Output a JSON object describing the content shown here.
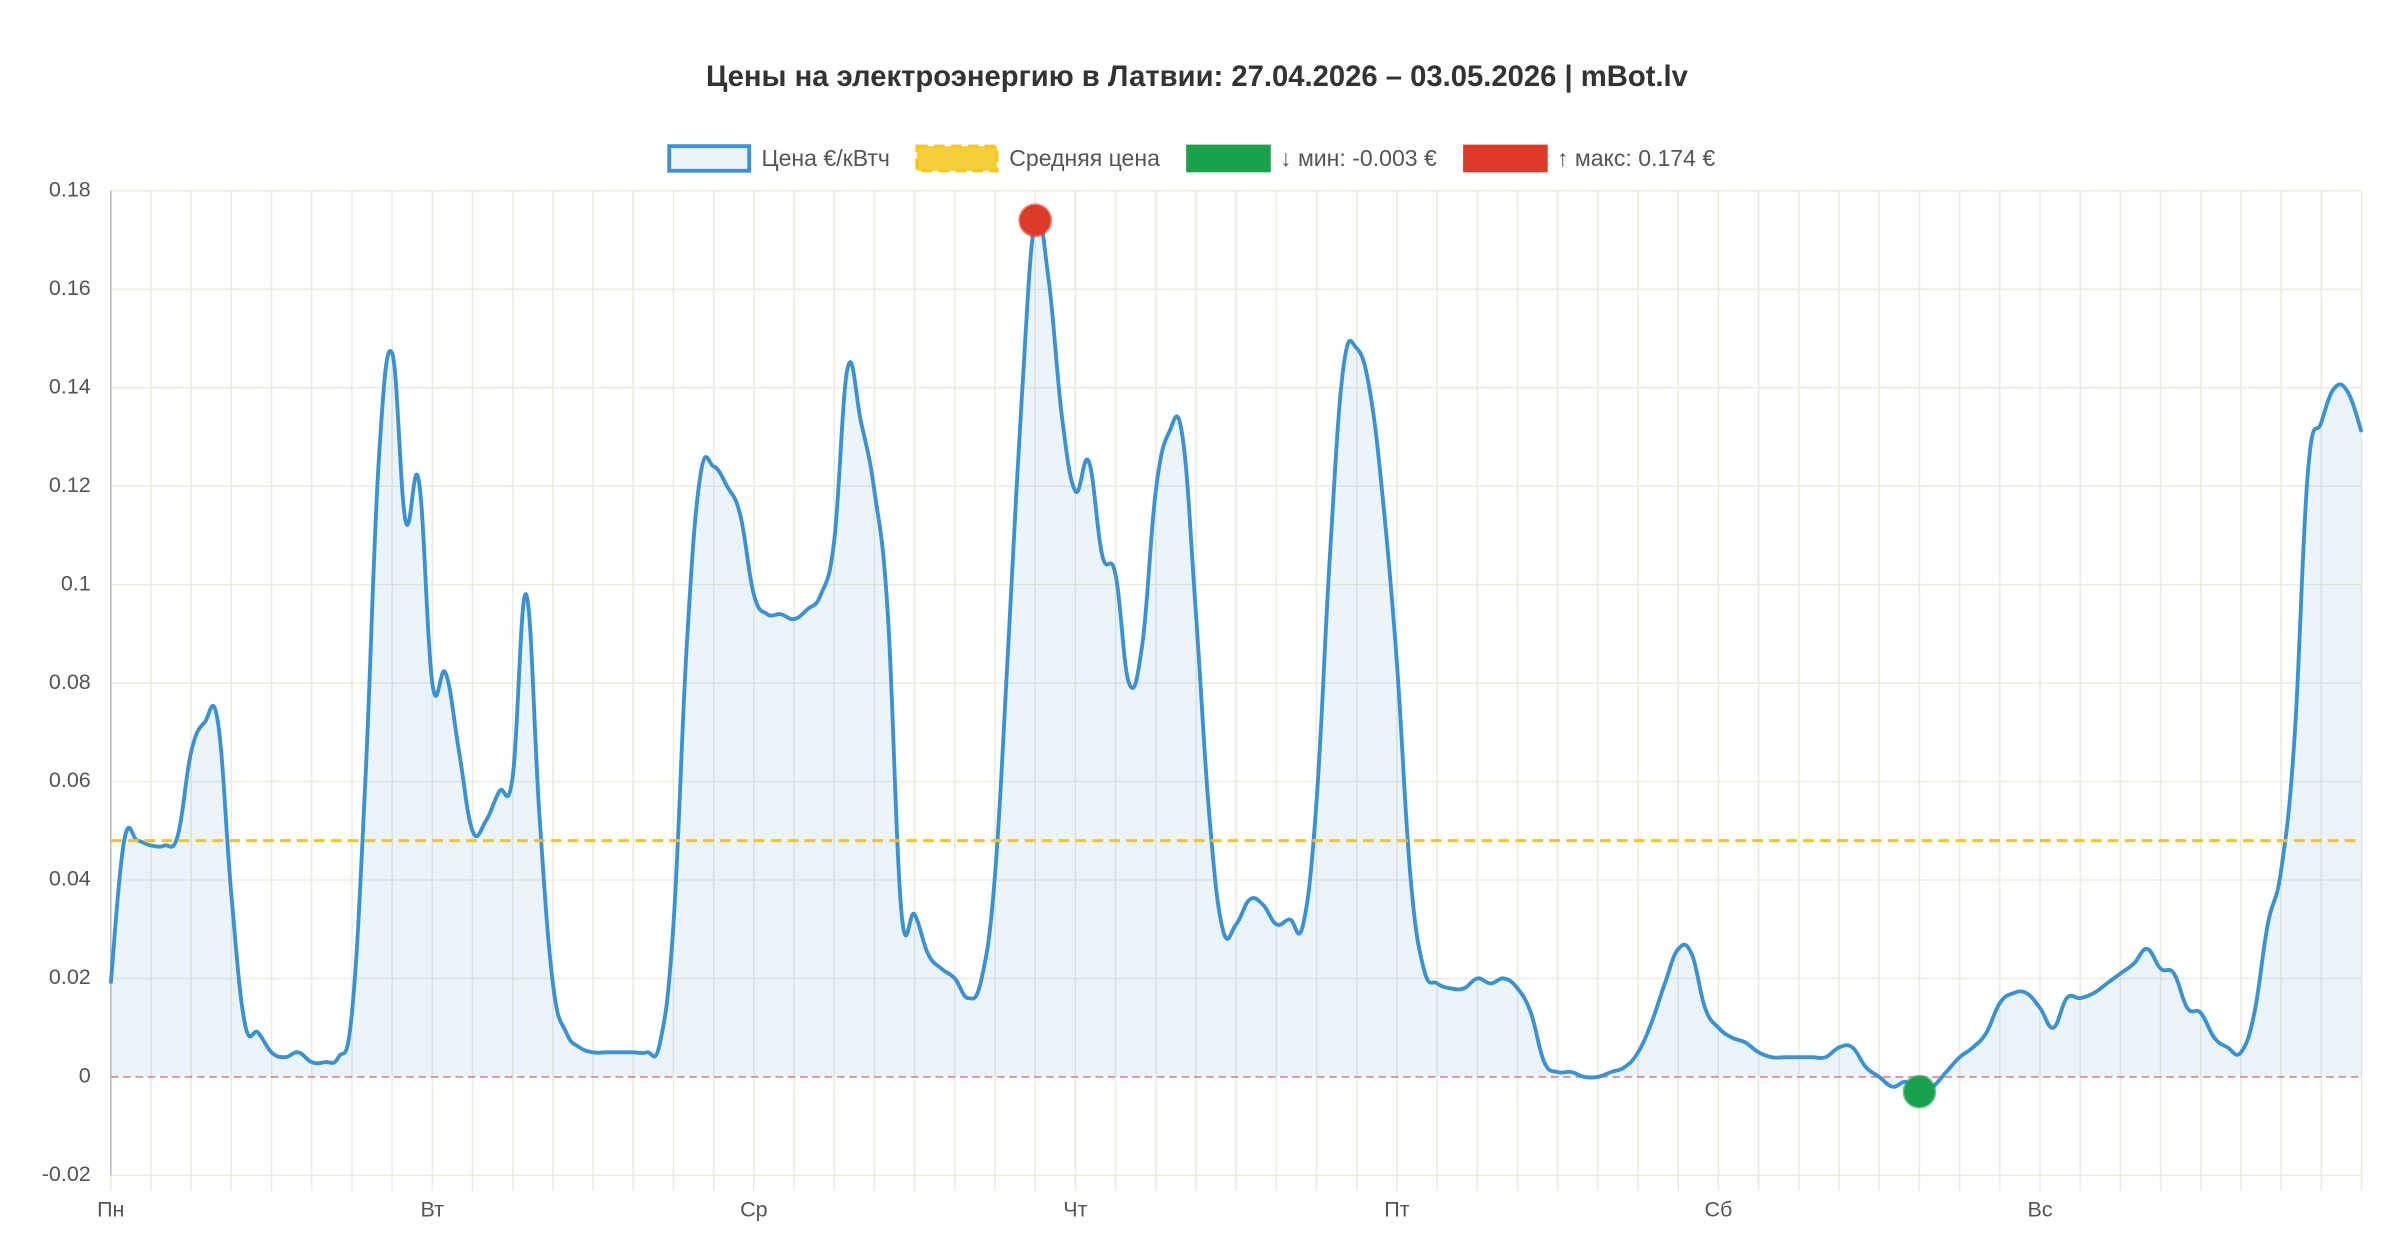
{
  "chart_data": {
    "type": "line",
    "title": "Цены на электроэнергию в Латвии: 27.04.2026 – 03.05.2026 | mBot.lv",
    "categories": [
      "Пн",
      null,
      null,
      null,
      null,
      null,
      null,
      null,
      null,
      null,
      null,
      null,
      null,
      null,
      null,
      null,
      null,
      null,
      null,
      null,
      null,
      null,
      null,
      null,
      "Вт",
      null,
      null,
      null,
      null,
      null,
      null,
      null,
      null,
      null,
      null,
      null,
      null,
      null,
      null,
      null,
      null,
      null,
      null,
      null,
      null,
      null,
      null,
      null,
      "Ср",
      null,
      null,
      null,
      null,
      null,
      null,
      null,
      null,
      null,
      null,
      null,
      null,
      null,
      null,
      null,
      null,
      null,
      null,
      null,
      null,
      null,
      null,
      null,
      "Чт",
      null,
      null,
      null,
      null,
      null,
      null,
      null,
      null,
      null,
      null,
      null,
      null,
      null,
      null,
      null,
      null,
      null,
      null,
      null,
      null,
      null,
      null,
      null,
      "Пт",
      null,
      null,
      null,
      null,
      null,
      null,
      null,
      null,
      null,
      null,
      null,
      null,
      null,
      null,
      null,
      null,
      null,
      null,
      null,
      null,
      null,
      null,
      null,
      "Сб",
      null,
      null,
      null,
      null,
      null,
      null,
      null,
      null,
      null,
      null,
      null,
      null,
      null,
      null,
      null,
      null,
      null,
      null,
      null,
      null,
      null,
      null,
      null,
      "Вс",
      null,
      null,
      null,
      null,
      null,
      null,
      null,
      null,
      null,
      null,
      null,
      null,
      null,
      null,
      null,
      null,
      null,
      null,
      null,
      null,
      null,
      null,
      null,
      null
    ],
    "series": [
      {
        "name": "Цена €/кВтч",
        "color": "#3a92d3",
        "values": [
          0.019,
          0.048,
          0.048,
          0.047,
          0.047,
          0.049,
          0.066,
          0.072,
          0.072,
          0.037,
          0.011,
          0.009,
          0.005,
          0.004,
          0.005,
          0.003,
          0.003,
          0.004,
          0.013,
          0.06,
          0.125,
          0.147,
          0.113,
          0.121,
          0.08,
          0.082,
          0.066,
          0.05,
          0.052,
          0.058,
          0.061,
          0.098,
          0.053,
          0.019,
          0.009,
          0.006,
          0.005,
          0.005,
          0.005,
          0.005,
          0.005,
          0.007,
          0.031,
          0.088,
          0.122,
          0.124,
          0.12,
          0.114,
          0.098,
          0.094,
          0.094,
          0.093,
          0.095,
          0.098,
          0.109,
          0.144,
          0.133,
          0.119,
          0.094,
          0.034,
          0.033,
          0.025,
          0.022,
          0.02,
          0.016,
          0.02,
          0.041,
          0.088,
          0.138,
          0.174,
          0.162,
          0.134,
          0.119,
          0.125,
          0.106,
          0.102,
          0.08,
          0.088,
          0.119,
          0.131,
          0.13,
          0.094,
          0.053,
          0.03,
          0.031,
          0.036,
          0.035,
          0.031,
          0.032,
          0.031,
          0.056,
          0.106,
          0.144,
          0.148,
          0.139,
          0.116,
          0.084,
          0.041,
          0.022,
          0.019,
          0.018,
          0.018,
          0.02,
          0.019,
          0.02,
          0.018,
          0.013,
          0.003,
          0.001,
          0.001,
          0,
          0,
          0.001,
          0.002,
          0.005,
          0.011,
          0.019,
          0.026,
          0.025,
          0.014,
          0.01,
          0.008,
          0.007,
          0.005,
          0.004,
          0.004,
          0.004,
          0.004,
          0.004,
          0.006,
          0.006,
          0.002,
          0,
          -0.002,
          -0.001,
          -0.003,
          -0.002,
          0.001,
          0.004,
          0.006,
          0.009,
          0.015,
          0.017,
          0.017,
          0.014,
          0.01,
          0.016,
          0.016,
          0.017,
          0.019,
          0.021,
          0.023,
          0.026,
          0.022,
          0.021,
          0.014,
          0.013,
          0.008,
          0.006,
          0.005,
          0.013,
          0.031,
          0.042,
          0.069,
          0.123,
          0.133,
          0.14,
          0.139,
          0.131
        ]
      },
      {
        "name": "Средняя цена",
        "color": "#f5c518",
        "value": 0.048
      },
      {
        "name": "↓ мин: -0.003 €",
        "color": "#1aa14c",
        "index": 135
      },
      {
        "name": "↑ макс: 0.174 €",
        "color": "#dd3b2a",
        "index": 69
      }
    ],
    "ylim": [
      -0.02,
      0.18
    ],
    "yticks": [
      -0.02,
      0,
      0.02,
      0.04,
      0.06,
      0.08,
      0.1,
      0.12,
      0.14,
      0.16,
      0.18
    ],
    "grid": true
  }
}
